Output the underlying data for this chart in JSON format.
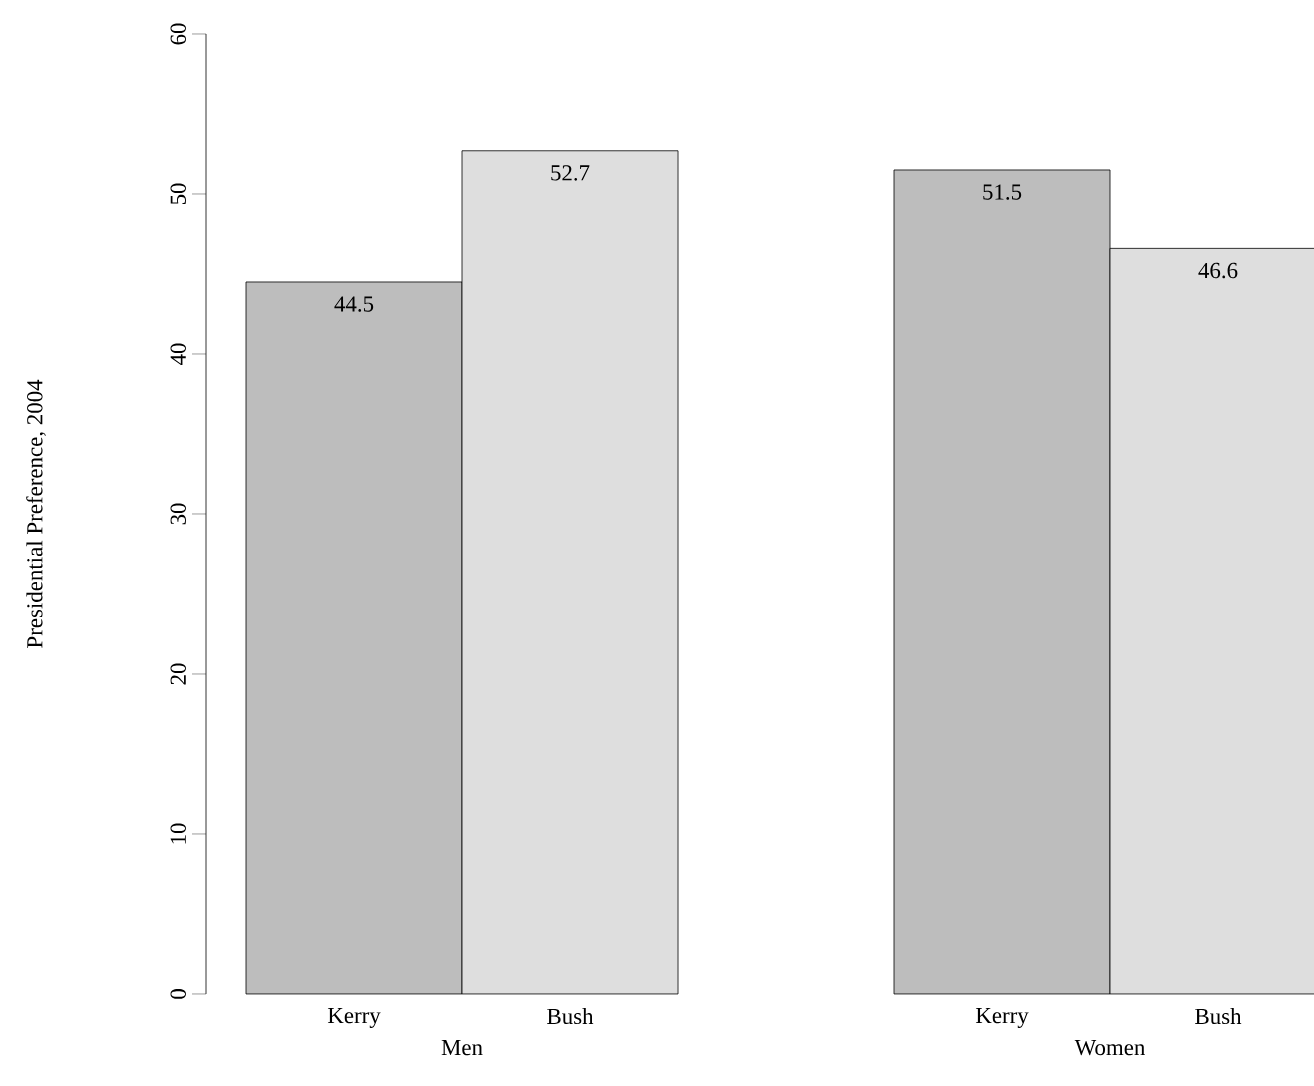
{
  "chart_data": {
    "type": "bar",
    "ylabel": "Presidential Preference, 2004",
    "categories": [
      "Men",
      "Women"
    ],
    "series": [
      {
        "name": "Kerry",
        "color": "#bdbdbd",
        "values": [
          44.5,
          51.5
        ]
      },
      {
        "name": "Bush",
        "color": "#dedede",
        "values": [
          52.7,
          46.6
        ]
      }
    ],
    "ylim": [
      0,
      60
    ],
    "yticks": [
      0,
      10,
      20,
      30,
      40,
      50,
      60
    ],
    "data_labels": true
  }
}
